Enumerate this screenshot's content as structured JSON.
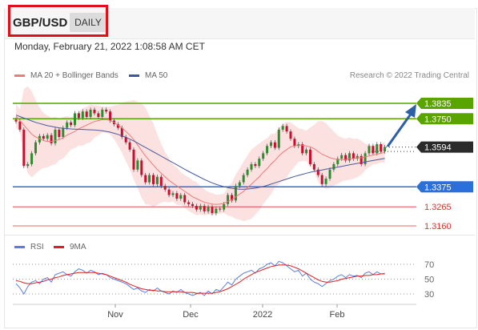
{
  "header": {
    "symbol": "GBP/USD",
    "period": "DAILY",
    "datetime": "Monday, February 21, 2022 1:08:58 AM CET"
  },
  "legend": {
    "ma20": "MA 20 + Bollinger Bands",
    "ma50": "MA 50",
    "research": "Research © 2022 Trading Central"
  },
  "rsi_legend": {
    "rsi": "RSI",
    "ma9": "9MA"
  },
  "colors": {
    "resistance": "#5aa400",
    "support": "#2a6fdb",
    "target": "#e03030",
    "current": "#2b2b2b",
    "candle_up": "#2e8b2e",
    "candle_down": "#c8102e",
    "bollinger": "#fcdcdc",
    "ma20": "#f07a7a",
    "ma50": "#4a5a9a",
    "rsi": "#5b7fdc",
    "rsi_ma": "#e02020",
    "arrow": "#2d5fa6"
  },
  "chart_data": {
    "type": "candlestick",
    "x_ticks": [
      "Nov",
      "Dec",
      "2022",
      "Feb"
    ],
    "ylim": [
      1.313,
      1.388
    ],
    "levels": [
      {
        "label": "1.3835",
        "value": 1.3835,
        "kind": "resistance"
      },
      {
        "label": "1.3750",
        "value": 1.375,
        "kind": "resistance"
      },
      {
        "label": "1.3594",
        "value": 1.3594,
        "kind": "current"
      },
      {
        "label": "1.3375",
        "value": 1.3375,
        "kind": "support"
      },
      {
        "label": "1.3265",
        "value": 1.3265,
        "kind": "target"
      },
      {
        "label": "1.3160",
        "value": 1.316,
        "kind": "target"
      }
    ],
    "closes": [
      1.3735,
      1.369,
      1.349,
      1.35,
      1.356,
      1.362,
      1.3655,
      1.364,
      1.366,
      1.3615,
      1.369,
      1.365,
      1.37,
      1.373,
      1.3715,
      1.378,
      1.3755,
      1.379,
      1.376,
      1.38,
      1.378,
      1.376,
      1.38,
      1.379,
      1.374,
      1.372,
      1.37,
      1.365,
      1.362,
      1.358,
      1.347,
      1.352,
      1.344,
      1.34,
      1.344,
      1.339,
      1.343,
      1.338,
      1.336,
      1.333,
      1.334,
      1.331,
      1.333,
      1.329,
      1.328,
      1.327,
      1.325,
      1.327,
      1.324,
      1.3265,
      1.323,
      1.3255,
      1.325,
      1.328,
      1.333,
      1.33,
      1.338,
      1.34,
      1.344,
      1.347,
      1.35,
      1.349,
      1.353,
      1.356,
      1.36,
      1.362,
      1.359,
      1.369,
      1.371,
      1.368,
      1.364,
      1.36,
      1.361,
      1.356,
      1.358,
      1.35,
      1.347,
      1.344,
      1.339,
      1.342,
      1.347,
      1.35,
      1.353,
      1.355,
      1.352,
      1.356,
      1.353,
      1.3545,
      1.35,
      1.356,
      1.36,
      1.356,
      1.361,
      1.357,
      1.3594
    ],
    "ma20": [
      1.3765,
      1.374,
      1.3715,
      1.369,
      1.3665,
      1.365,
      1.364,
      1.363,
      1.3625,
      1.3625,
      1.363,
      1.3635,
      1.3645,
      1.366,
      1.367,
      1.368,
      1.3695,
      1.3705,
      1.3715,
      1.3725,
      1.3735,
      1.374,
      1.3745,
      1.3745,
      1.374,
      1.373,
      1.3715,
      1.37,
      1.368,
      1.366,
      1.3635,
      1.3605,
      1.3575,
      1.3545,
      1.352,
      1.3495,
      1.347,
      1.345,
      1.343,
      1.341,
      1.3395,
      1.338,
      1.3365,
      1.335,
      1.3335,
      1.332,
      1.331,
      1.33,
      1.329,
      1.3285,
      1.328,
      1.3278,
      1.328,
      1.3285,
      1.3295,
      1.3305,
      1.332,
      1.3335,
      1.335,
      1.337,
      1.339,
      1.341,
      1.343,
      1.3455,
      1.3475,
      1.35,
      1.352,
      1.3545,
      1.3565,
      1.358,
      1.3595,
      1.36,
      1.3605,
      1.3605,
      1.36,
      1.3595,
      1.3585,
      1.357,
      1.3555,
      1.3545,
      1.3535,
      1.353,
      1.3525,
      1.3525,
      1.3525,
      1.353,
      1.353,
      1.3535,
      1.3535,
      1.354,
      1.3545,
      1.355,
      1.3555,
      1.356,
      1.3565
    ],
    "ma50": [
      1.377,
      1.3762,
      1.3754,
      1.3746,
      1.3738,
      1.373,
      1.3724,
      1.3718,
      1.3712,
      1.3708,
      1.3704,
      1.37,
      1.3698,
      1.3696,
      1.3694,
      1.3693,
      1.3692,
      1.3691,
      1.369,
      1.3689,
      1.3688,
      1.3686,
      1.3684,
      1.368,
      1.3676,
      1.367,
      1.3664,
      1.3656,
      1.3648,
      1.3638,
      1.3628,
      1.3616,
      1.3604,
      1.3592,
      1.358,
      1.3568,
      1.3556,
      1.3544,
      1.3532,
      1.352,
      1.3508,
      1.3496,
      1.3484,
      1.3472,
      1.346,
      1.3449,
      1.3438,
      1.3427,
      1.3416,
      1.3406,
      1.3397,
      1.3389,
      1.3382,
      1.3376,
      1.3371,
      1.3367,
      1.3364,
      1.3362,
      1.3362,
      1.3363,
      1.3365,
      1.3368,
      1.3372,
      1.3377,
      1.3383,
      1.339,
      1.3397,
      1.3404,
      1.3411,
      1.3418,
      1.3425,
      1.3432,
      1.3438,
      1.3444,
      1.345,
      1.3455,
      1.346,
      1.3464,
      1.3468,
      1.3472,
      1.3476,
      1.348,
      1.3484,
      1.3488,
      1.3492,
      1.3496,
      1.35,
      1.3504,
      1.3508,
      1.3512,
      1.3516,
      1.352,
      1.3524,
      1.3528,
      1.3532
    ],
    "rsi": {
      "ticks": [
        "70",
        "50",
        "30"
      ],
      "ylim": [
        20,
        80
      ],
      "values": [
        44,
        38,
        30,
        40,
        46,
        48,
        44,
        50,
        52,
        46,
        56,
        58,
        60,
        56,
        54,
        60,
        64,
        62,
        58,
        62,
        60,
        56,
        58,
        56,
        52,
        50,
        48,
        46,
        44,
        40,
        36,
        38,
        34,
        32,
        36,
        34,
        38,
        34,
        32,
        30,
        34,
        32,
        36,
        32,
        30,
        28,
        30,
        32,
        28,
        34,
        30,
        36,
        34,
        40,
        46,
        42,
        50,
        54,
        58,
        60,
        62,
        58,
        64,
        66,
        70,
        72,
        68,
        74,
        72,
        68,
        64,
        60,
        62,
        54,
        58,
        50,
        46,
        44,
        40,
        44,
        48,
        50,
        54,
        56,
        52,
        56,
        54,
        55,
        52,
        58,
        60,
        56,
        60,
        57,
        58
      ],
      "ma9": [
        48,
        47,
        45,
        44,
        44,
        45,
        46,
        47,
        49,
        50,
        52,
        53,
        55,
        56,
        57,
        58,
        59,
        59,
        59,
        59,
        59,
        58,
        57,
        56,
        54,
        52,
        50,
        48,
        46,
        43,
        41,
        39,
        37,
        36,
        35,
        35,
        34,
        34,
        33,
        33,
        33,
        33,
        33,
        32,
        32,
        32,
        31,
        31,
        31,
        31,
        31,
        32,
        33,
        35,
        37,
        40,
        43,
        46,
        50,
        53,
        56,
        59,
        61,
        63,
        65,
        67,
        68,
        69,
        69,
        69,
        68,
        66,
        64,
        61,
        58,
        55,
        52,
        49,
        47,
        46,
        46,
        47,
        48,
        50,
        51,
        52,
        53,
        54,
        54,
        55,
        55,
        56,
        56,
        57,
        57
      ]
    }
  }
}
